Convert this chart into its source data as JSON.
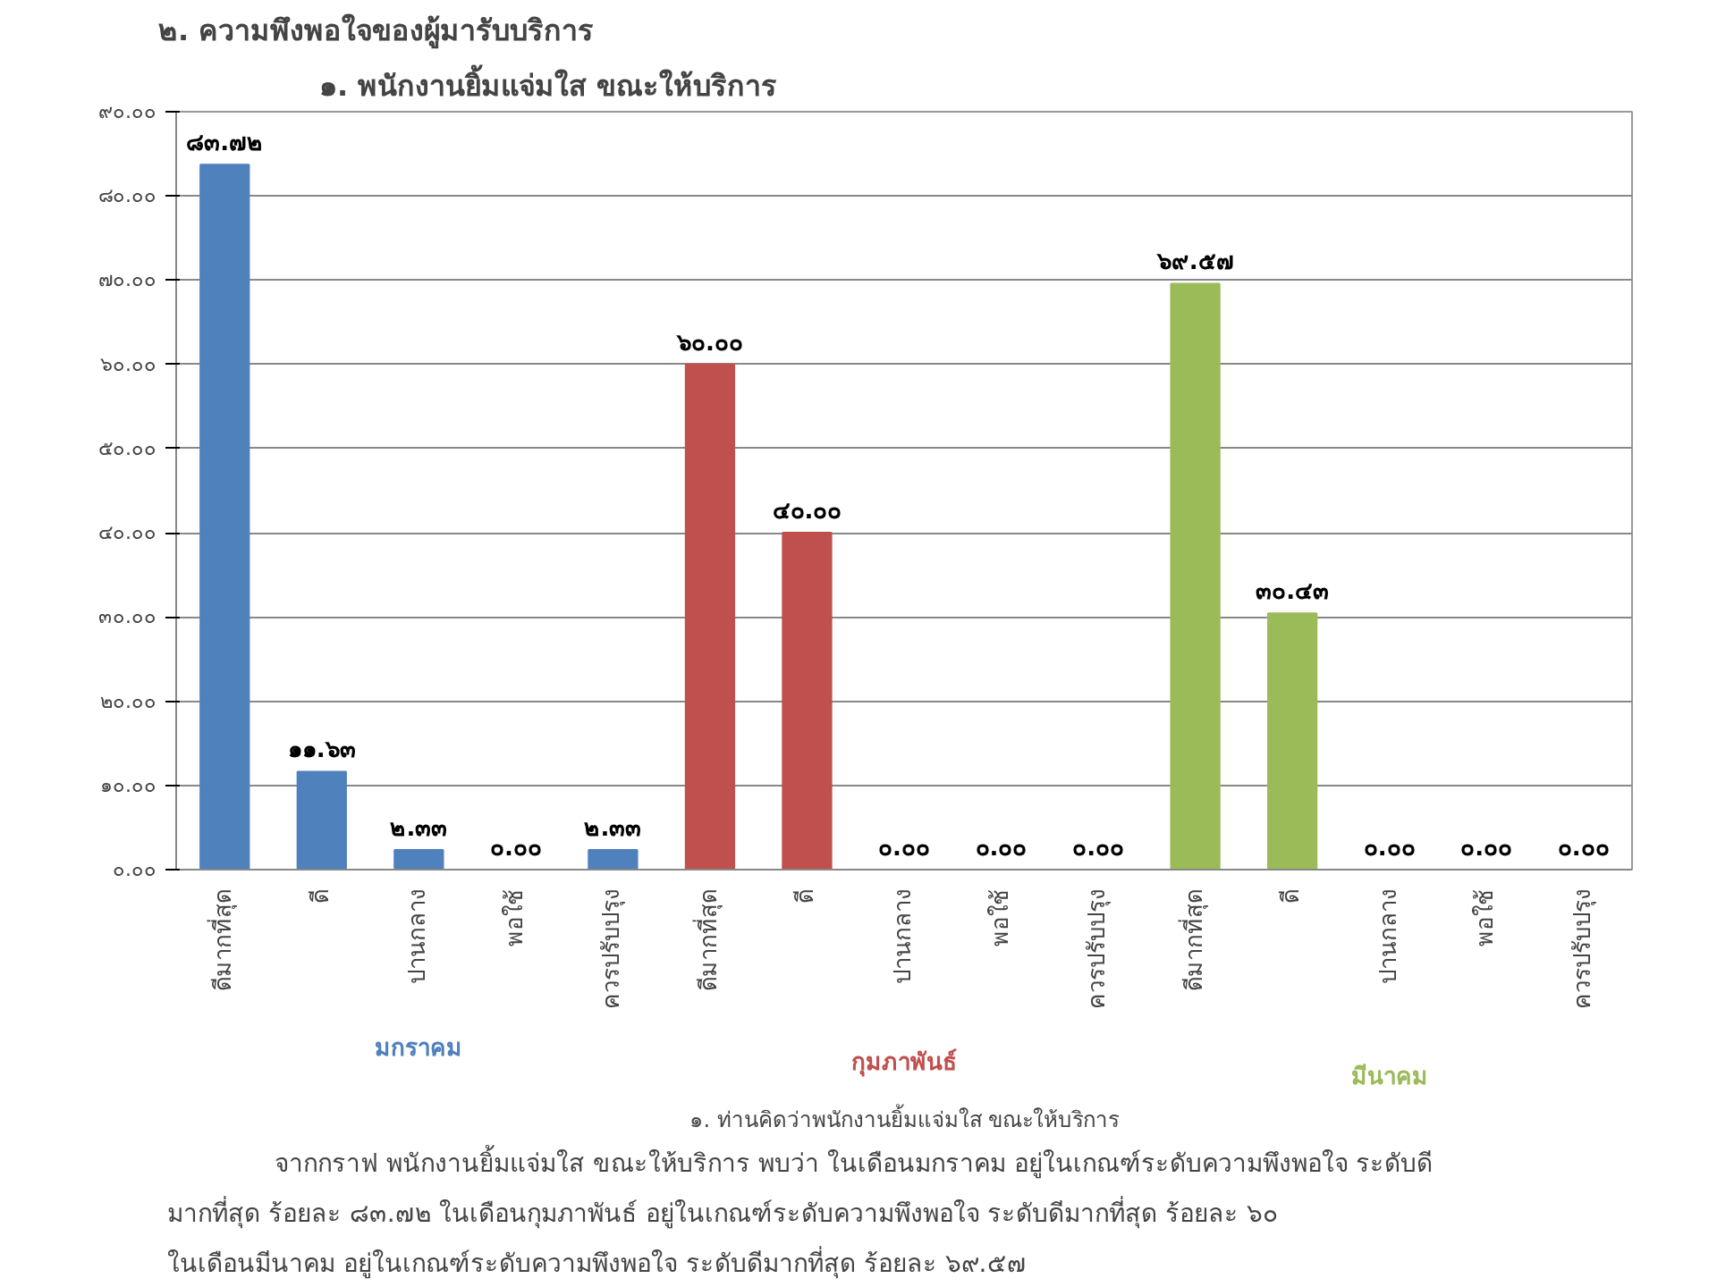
{
  "chart_data": {
    "type": "bar",
    "title": "๒. ความพึงพอใจของผู้มารับบริการ",
    "subtitle": "๑. พนักงานยิ้มแจ่มใส ขณะให้บริการ",
    "xlabel": "๑. ท่านคิดว่าพนักงานยิ้มแจ่มใส ขณะให้บริการ",
    "annotations": [
      "จากกราฟ พนักงานยิ้มแจ่มใส ขณะให้บริการ พบว่า ในเดือนมกราคม อยู่ในเกณฑ์ระดับความพึงพอใจ ระดับดี",
      "มากที่สุด ร้อยละ ๘๓.๗๒  ในเดือนกุมภาพันธ์ อยู่ในเกณฑ์ระดับความพึงพอใจ ระดับดีมากที่สุด ร้อยละ ๖๐",
      "ในเดือนมีนาคม อยู่ในเกณฑ์ระดับความพึงพอใจ ระดับดีมากที่สุด ร้อยละ ๖๙.๕๗"
    ],
    "categories": [
      "ดีมากที่สุด",
      "ดี",
      "ปานกลาง",
      "พอใช้",
      "ควรปรับปรุง",
      "ดีมากที่สุด",
      "ดี",
      "ปานกลาง",
      "พอใช้",
      "ควรปรับปรุง",
      "ดีมากที่สุด",
      "ดี",
      "ปานกลาง",
      "พอใช้",
      "ควรปรับปรุง"
    ],
    "series": [
      {
        "name": "มกราคม",
        "color": "#4f81bd",
        "values": [
          83.72,
          11.63,
          2.33,
          0.0,
          2.33,
          null,
          null,
          null,
          null,
          null,
          null,
          null,
          null,
          null,
          null
        ],
        "value_labels": [
          "๘๓.๗๒",
          "๑๑.๖๓",
          "๒.๓๓",
          "๐.๐๐",
          "๒.๓๓",
          null,
          null,
          null,
          null,
          null,
          null,
          null,
          null,
          null,
          null
        ]
      },
      {
        "name": "กุมภาพันธ์",
        "color": "#c0504d",
        "values": [
          null,
          null,
          null,
          null,
          null,
          60.0,
          40.0,
          0.0,
          0.0,
          0.0,
          null,
          null,
          null,
          null,
          null
        ],
        "value_labels": [
          null,
          null,
          null,
          null,
          null,
          "๖๐.๐๐",
          "๔๐.๐๐",
          "๐.๐๐",
          "๐.๐๐",
          "๐.๐๐",
          null,
          null,
          null,
          null,
          null
        ]
      },
      {
        "name": "มีนาคม",
        "color": "#9bbb59",
        "values": [
          null,
          null,
          null,
          null,
          null,
          null,
          null,
          null,
          null,
          null,
          69.57,
          30.43,
          0.0,
          0.0,
          0.0
        ],
        "value_labels": [
          null,
          null,
          null,
          null,
          null,
          null,
          null,
          null,
          null,
          null,
          "๖๙.๕๗",
          "๓๐.๔๓",
          "๐.๐๐",
          "๐.๐๐",
          "๐.๐๐"
        ]
      }
    ],
    "ylim": [
      0,
      90
    ],
    "yticks": [
      {
        "value": 0,
        "label": "๐.๐๐"
      },
      {
        "value": 10,
        "label": "๑๐.๐๐"
      },
      {
        "value": 20,
        "label": "๒๐.๐๐"
      },
      {
        "value": 30,
        "label": "๓๐.๐๐"
      },
      {
        "value": 40,
        "label": "๔๐.๐๐"
      },
      {
        "value": 50,
        "label": "๕๐.๐๐"
      },
      {
        "value": 60,
        "label": "๖๐.๐๐"
      },
      {
        "value": 70,
        "label": "๗๐.๐๐"
      },
      {
        "value": 80,
        "label": "๘๐.๐๐"
      },
      {
        "value": 90,
        "label": "๙๐.๐๐"
      }
    ],
    "grid": "y"
  }
}
